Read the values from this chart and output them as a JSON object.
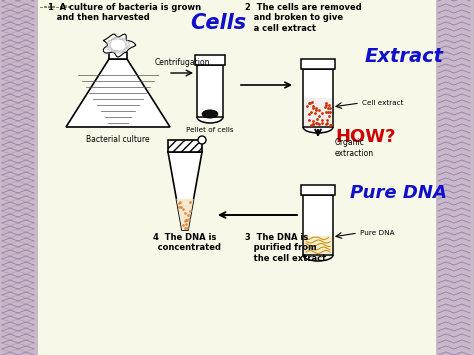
{
  "bg_color": "#e8e0d0",
  "bg_main": "#f5f5e0",
  "step1_title": "1  A culture of bacteria is grown\n   and then harvested",
  "step2_title": "2  The cells are removed\n   and broken to give\n   a cell extract",
  "step3_label": "3  The DNA is\n   purified from\n   the cell extract",
  "step4_label": "4  The DNA is\n   concentrated",
  "cells_label": "Cells",
  "extract_label": "Extract",
  "how_label": "HOW?",
  "organic_label": "Organic\nextraction",
  "pure_dna_label": "Pure DNA",
  "bacterial_culture_label": "Bacterial culture",
  "centrifugation_label": "Centrifugation",
  "pellet_label": "Pellet of cells",
  "cell_extract_label": "Cell extract",
  "pure_dna_arrow_label": "Pure DNA",
  "left_border_color": "#b8a0b8",
  "cells_color": "#1010cc",
  "extract_color": "#1010cc",
  "how_color": "#cc0000",
  "pure_dna_color": "#1010cc",
  "dot_color_red": "#cc3300",
  "dot_color_orange": "#dd7700"
}
